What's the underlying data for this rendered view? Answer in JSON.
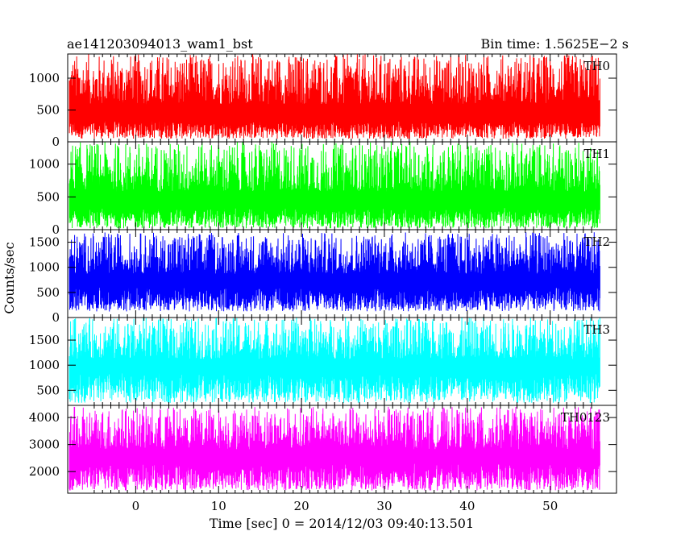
{
  "header": {
    "left_title": "ae141203094013_wam1_bst",
    "right_title": "Bin time: 1.5625E−2 s"
  },
  "axes": {
    "xlabel": "Time [sec] 0 = 2014/12/03 09:40:13.501",
    "ylabel": "Counts/sec"
  },
  "chart_data": {
    "type": "line",
    "x_range": [
      -8.2,
      58
    ],
    "xticks": [
      0,
      10,
      20,
      30,
      40,
      50
    ],
    "data_x_range": [
      -8,
      56
    ],
    "grid": false,
    "panels": [
      {
        "name": "TH0",
        "color": "#ff0000",
        "ylim": [
          0,
          1380
        ],
        "yticks": [
          0,
          500,
          1000
        ],
        "baseline": 330,
        "peak": 1380,
        "low": 50
      },
      {
        "name": "TH1",
        "color": "#00ff00",
        "ylim": [
          0,
          1340
        ],
        "yticks": [
          0,
          500,
          1000
        ],
        "baseline": 330,
        "peak": 1340,
        "low": 20
      },
      {
        "name": "TH2",
        "color": "#0000ff",
        "ylim": [
          0,
          1750
        ],
        "yticks": [
          0,
          500,
          1000,
          1500
        ],
        "baseline": 600,
        "peak": 1700,
        "low": 120
      },
      {
        "name": "TH3",
        "color": "#00ffff",
        "ylim": [
          200,
          1950
        ],
        "yticks": [
          500,
          1000,
          1500
        ],
        "baseline": 850,
        "peak": 1950,
        "low": 250
      },
      {
        "name": "TH0123",
        "color": "#ff00ff",
        "ylim": [
          1200,
          4450
        ],
        "yticks": [
          2000,
          3000,
          4000
        ],
        "baseline": 2300,
        "peak": 4400,
        "low": 1300
      }
    ]
  }
}
